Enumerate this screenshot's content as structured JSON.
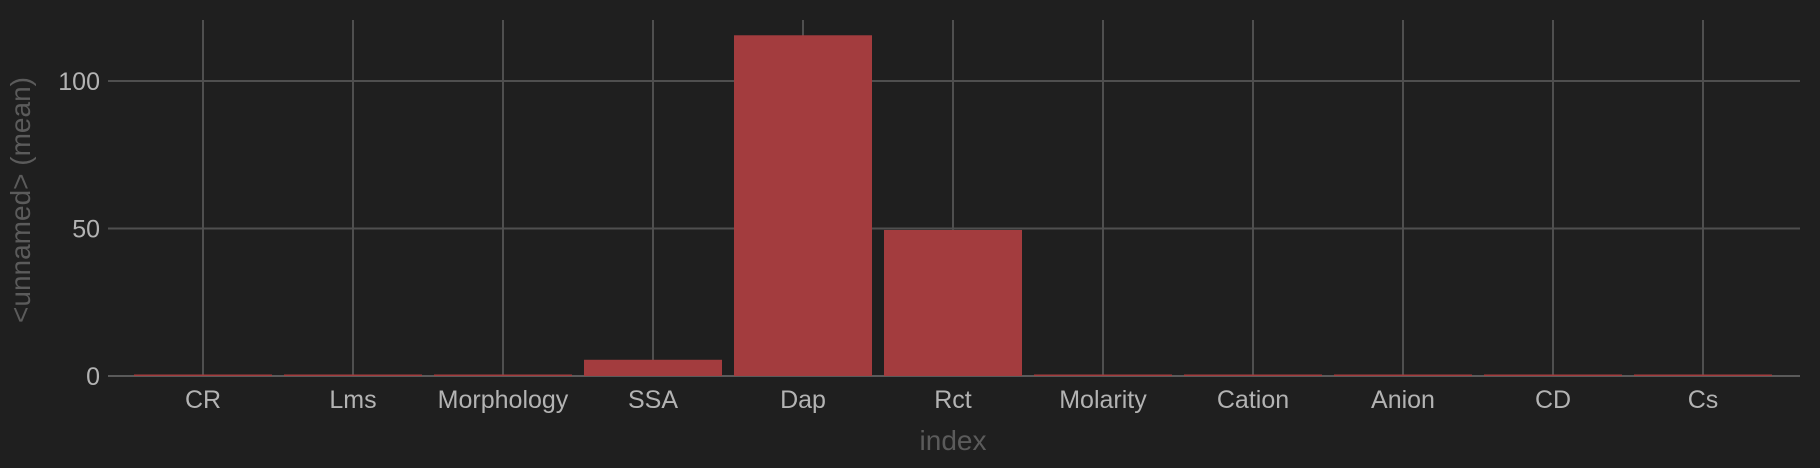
{
  "chart_data": {
    "type": "bar",
    "categories": [
      "CR",
      "Lms",
      "Morphology",
      "SSA",
      "Dap",
      "Rct",
      "Molarity",
      "Cation",
      "Anion",
      "CD",
      "Cs"
    ],
    "values": [
      0.3,
      0.3,
      0.3,
      5.5,
      115.5,
      49.5,
      0.3,
      0.3,
      0.3,
      0.3,
      0.3
    ],
    "xlabel": "index",
    "ylabel": "<unnamed> (mean)",
    "yticks": [
      0,
      50,
      100
    ],
    "ytick_labels": [
      "0",
      "50",
      "100"
    ],
    "ylim": [
      0,
      120
    ],
    "grid": true,
    "legend": "none",
    "colors": {
      "bar": "#a33c3e",
      "background": "#1f1f1f",
      "grid": "#4f4f4f"
    }
  }
}
